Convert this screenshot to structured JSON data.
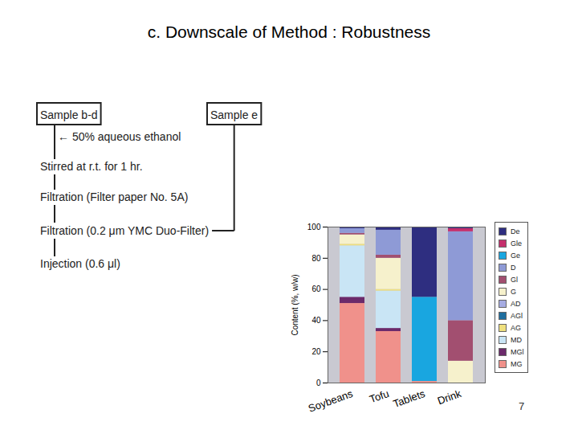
{
  "slide": {
    "title": "c. Downscale of Method : Robustness",
    "page_number": "7"
  },
  "flow": {
    "start_left": "Sample b-d",
    "start_right": "Sample e",
    "steps": [
      "← 50% aqueous ethanol",
      "Stirred at r.t. for 1 hr.",
      "Filtration (Filter paper No. 5A)",
      "Filtration (0.2 μm YMC Duo-Filter)",
      "Injection (0.6 μl)"
    ]
  },
  "chart_data": {
    "type": "bar",
    "stacked": true,
    "legend": "right",
    "ylabel": "Content (%, w/w)",
    "categories": [
      "Soybeans",
      "Tofu",
      "Tablets",
      "Drink"
    ],
    "ylim": [
      0,
      100
    ],
    "yticks": [
      0,
      20,
      40,
      60,
      80,
      100
    ],
    "series": [
      {
        "name": "De",
        "color": "#2e2e80",
        "values": [
          1,
          2,
          45,
          1
        ]
      },
      {
        "name": "Gle",
        "color": "#c42f6c",
        "values": [
          0,
          0,
          0,
          2
        ]
      },
      {
        "name": "Ge",
        "color": "#19a6e0",
        "values": [
          0,
          0,
          54,
          0
        ]
      },
      {
        "name": "D",
        "color": "#8e9ad6",
        "values": [
          3,
          16,
          0,
          57
        ]
      },
      {
        "name": "Gl",
        "color": "#a24f70",
        "values": [
          1,
          2,
          0,
          26
        ]
      },
      {
        "name": "G",
        "color": "#f6f1cc",
        "values": [
          6,
          20,
          0,
          14
        ]
      },
      {
        "name": "AD",
        "color": "#a6ace2",
        "values": [
          0,
          0,
          0,
          0
        ]
      },
      {
        "name": "AGl",
        "color": "#1f6e9e",
        "values": [
          0,
          0,
          0,
          0
        ]
      },
      {
        "name": "AG",
        "color": "#efe07e",
        "values": [
          1,
          1,
          0,
          0
        ]
      },
      {
        "name": "MD",
        "color": "#c9e5f5",
        "values": [
          33,
          24,
          0,
          0
        ]
      },
      {
        "name": "MGl",
        "color": "#6b2a6b",
        "values": [
          4,
          2,
          0,
          0
        ]
      },
      {
        "name": "MG",
        "color": "#f0918b",
        "values": [
          51,
          33,
          1,
          0
        ]
      }
    ]
  }
}
